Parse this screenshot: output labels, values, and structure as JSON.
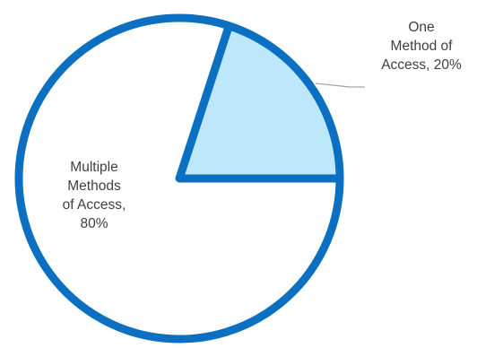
{
  "chart_data": {
    "type": "pie",
    "title": "",
    "start_angle_deg": 0,
    "direction": "counterclockwise",
    "slices": [
      {
        "label": "One Method of Access, 20%",
        "label_lines": [
          "One",
          "Method of",
          "Access, 20%"
        ],
        "value": 20,
        "fill": "#bde7fa"
      },
      {
        "label": "Multiple Methods of Access, 80%",
        "label_lines": [
          "Multiple",
          "Methods",
          "of Access,",
          "80%"
        ],
        "value": 80,
        "fill": "#ffffff"
      }
    ],
    "stroke_color": "#0b70c1",
    "leader_line_color": "#a6a6a6",
    "label_color": "#404040",
    "legend": "none"
  }
}
